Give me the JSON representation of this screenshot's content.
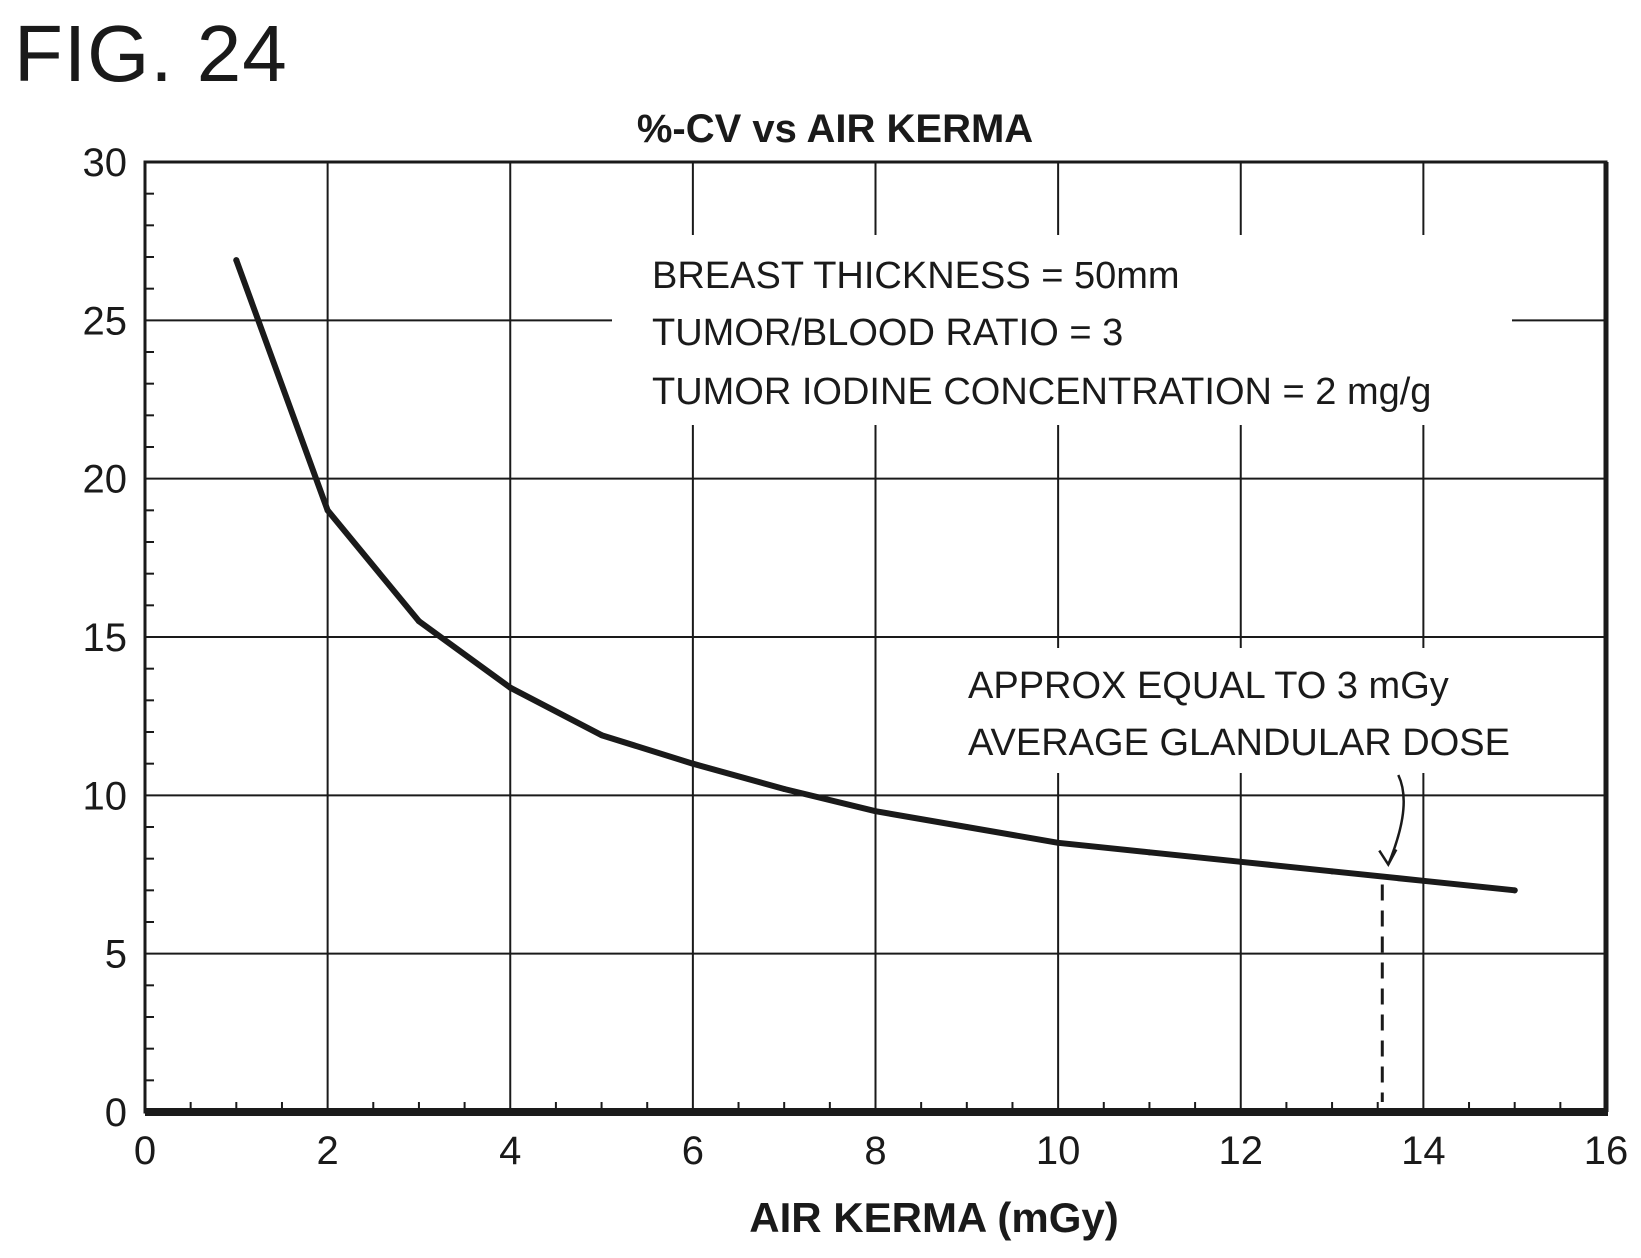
{
  "figure_label": "FIG. 24",
  "chart_data": {
    "type": "line",
    "title": "%-CV vs AIR KERMA",
    "xlabel": "AIR KERMA (mGy)",
    "ylabel": "",
    "xlim": [
      0,
      16
    ],
    "ylim": [
      0,
      30
    ],
    "x_ticks": [
      0,
      2,
      4,
      6,
      8,
      10,
      12,
      14,
      16
    ],
    "y_ticks": [
      0,
      5,
      10,
      15,
      20,
      25,
      30
    ],
    "grid": true,
    "series": [
      {
        "x": [
          1,
          2,
          3,
          4,
          5,
          6,
          7,
          8,
          9,
          10,
          11,
          12,
          13,
          14,
          15
        ],
        "values": [
          26.9,
          19.0,
          15.5,
          13.4,
          11.9,
          11.0,
          10.2,
          9.5,
          9.0,
          8.5,
          8.2,
          7.9,
          7.6,
          7.3,
          7.0
        ]
      }
    ],
    "annotations": {
      "conditions": [
        "BREAST THICKNESS = 50mm",
        "TUMOR/BLOOD RATIO = 3",
        "TUMOR IODINE CONCENTRATION = 2 mg/g"
      ],
      "dose_note": [
        "APPROX EQUAL TO 3 mGy",
        "AVERAGE GLANDULAR DOSE"
      ],
      "marker_x": 13.55
    }
  }
}
